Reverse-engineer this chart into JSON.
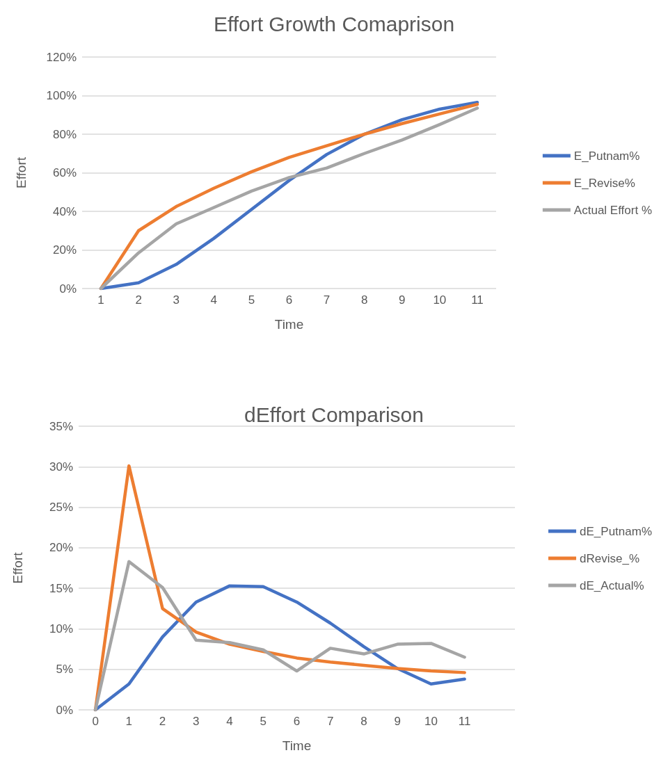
{
  "chart_data": [
    {
      "type": "line",
      "title": "Effort Growth Comaprison",
      "xlabel": "Time",
      "ylabel": "Effort",
      "categories": [
        "1",
        "2",
        "3",
        "4",
        "5",
        "6",
        "7",
        "8",
        "9",
        "10",
        "11"
      ],
      "series": [
        {
          "name": "E_Putnam%",
          "color": "#4472c4",
          "values": [
            0,
            3,
            12.5,
            26,
            41,
            56,
            69.5,
            80,
            87.5,
            93,
            96.5
          ]
        },
        {
          "name": "E_Revise%",
          "color": "#ed7d31",
          "values": [
            0,
            30,
            42.5,
            52,
            60.5,
            68,
            74,
            80,
            85.5,
            90.5,
            95.5
          ]
        },
        {
          "name": "Actual Effort %",
          "color": "#a5a5a5",
          "values": [
            0,
            18.5,
            33.5,
            42,
            50.5,
            57.5,
            62.5,
            70,
            77,
            85,
            93.5
          ]
        }
      ],
      "ylim": [
        0,
        120
      ],
      "yticks": [
        {
          "value": 0,
          "label": "0%"
        },
        {
          "value": 20,
          "label": "20%"
        },
        {
          "value": 40,
          "label": "40%"
        },
        {
          "value": 60,
          "label": "60%"
        },
        {
          "value": 80,
          "label": "80%"
        },
        {
          "value": 100,
          "label": "100%"
        },
        {
          "value": 120,
          "label": "120%"
        }
      ],
      "grid": "y",
      "legend": "right",
      "marker": "none",
      "line_style": "solid"
    },
    {
      "type": "line",
      "title": "dEffort Comparison",
      "xlabel": "Time",
      "ylabel": "Effort",
      "categories": [
        "0",
        "1",
        "2",
        "3",
        "4",
        "5",
        "6",
        "7",
        "8",
        "9",
        "10",
        "11",
        null
      ],
      "series": [
        {
          "name": "dE_Putnam%",
          "color": "#4472c4",
          "values": [
            0,
            3.2,
            9,
            13.3,
            15.3,
            15.2,
            13.3,
            10.7,
            7.8,
            5.1,
            3.2,
            3.8,
            null
          ]
        },
        {
          "name": "dRevise_%",
          "color": "#ed7d31",
          "values": [
            0,
            30.1,
            12.5,
            9.6,
            8.1,
            7.2,
            6.4,
            5.9,
            5.5,
            5.1,
            4.8,
            4.6,
            null
          ]
        },
        {
          "name": "dE_Actual%",
          "color": "#a5a5a5",
          "values": [
            0,
            18.3,
            15.1,
            8.6,
            8.3,
            7.4,
            4.8,
            7.6,
            6.9,
            8.1,
            8.2,
            6.5,
            null
          ]
        }
      ],
      "ylim": [
        0,
        35
      ],
      "yticks": [
        {
          "value": 0,
          "label": "0%"
        },
        {
          "value": 5,
          "label": "5%"
        },
        {
          "value": 10,
          "label": "10%"
        },
        {
          "value": 15,
          "label": "15%"
        },
        {
          "value": 20,
          "label": "20%"
        },
        {
          "value": 25,
          "label": "25%"
        },
        {
          "value": 30,
          "label": "30%"
        },
        {
          "value": 35,
          "label": "35%"
        }
      ],
      "grid": "y",
      "legend": "right",
      "marker": "none",
      "line_style": "solid"
    }
  ]
}
